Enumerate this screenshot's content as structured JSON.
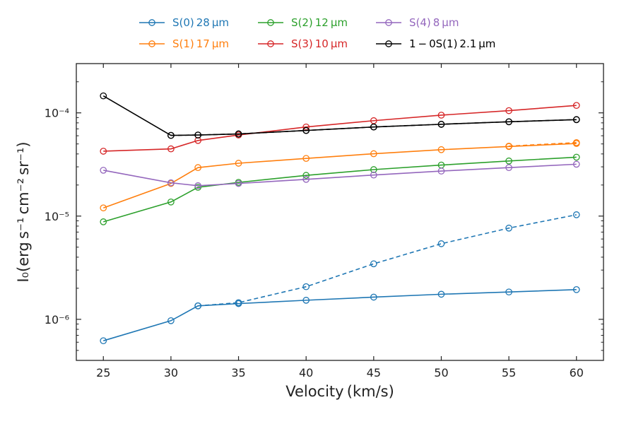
{
  "chart_data": {
    "type": "line",
    "title": "",
    "xlabel": "Velocity (km/s)",
    "ylabel": "I₀(erg s⁻¹ cm⁻² sr⁻¹)",
    "yscale": "log",
    "xlim": [
      23,
      62
    ],
    "ylim": [
      4e-07,
      0.0003
    ],
    "xticks": [
      25,
      30,
      35,
      40,
      45,
      50,
      55,
      60
    ],
    "xtick_labels": [
      "25",
      "30",
      "35",
      "40",
      "45",
      "50",
      "55",
      "60"
    ],
    "yticks": [
      1e-06,
      1e-05,
      0.0001
    ],
    "ytick_labels": [
      "10⁻⁶",
      "10⁻⁵",
      "10⁻⁴"
    ],
    "grid": false,
    "legend_position": "top-center",
    "x": [
      25,
      30,
      32,
      35,
      40,
      45,
      50,
      55,
      60
    ],
    "series": [
      {
        "name": "S(0) 28 μm",
        "color": "#1f77b4",
        "values": [
          6.2e-07,
          9.7e-07,
          1.35e-06,
          1.42e-06,
          1.53e-06,
          1.64e-06,
          1.75e-06,
          1.84e-06,
          1.94e-06
        ],
        "dashed_x": [
          32,
          35,
          40,
          45,
          50,
          55,
          60
        ],
        "dashed_values": [
          1.35e-06,
          1.45e-06,
          2.07e-06,
          3.45e-06,
          5.4e-06,
          7.65e-06,
          1.03e-05
        ]
      },
      {
        "name": "S(1) 17 μm",
        "color": "#ff7f0e",
        "values": [
          1.2e-05,
          2.07e-05,
          2.95e-05,
          3.25e-05,
          3.62e-05,
          4.02e-05,
          4.4e-05,
          4.72e-05,
          5.05e-05
        ],
        "dashed_x": [
          55,
          60
        ],
        "dashed_values": [
          4.76e-05,
          5.15e-05
        ]
      },
      {
        "name": "S(2) 12 μm",
        "color": "#2ca02c",
        "values": [
          8.8e-06,
          1.37e-05,
          1.9e-05,
          2.12e-05,
          2.48e-05,
          2.82e-05,
          3.12e-05,
          3.42e-05,
          3.72e-05
        ],
        "dashed_x": [],
        "dashed_values": []
      },
      {
        "name": "S(3) 10 μm",
        "color": "#d62728",
        "values": [
          4.25e-05,
          4.48e-05,
          5.4e-05,
          6.1e-05,
          7.3e-05,
          8.4e-05,
          9.5e-05,
          0.000105,
          0.000118
        ],
        "dashed_x": [],
        "dashed_values": []
      },
      {
        "name": "S(4) 8 μm",
        "color": "#9467bd",
        "values": [
          2.78e-05,
          2.1e-05,
          1.97e-05,
          2.07e-05,
          2.27e-05,
          2.5e-05,
          2.73e-05,
          2.95e-05,
          3.18e-05
        ],
        "dashed_x": [],
        "dashed_values": []
      },
      {
        "name": "1 − 0S(1) 2.1 μm",
        "color": "#000000",
        "values": [
          0.000146,
          6.05e-05,
          6.1e-05,
          6.25e-05,
          6.75e-05,
          7.3e-05,
          7.75e-05,
          8.2e-05,
          8.6e-05
        ],
        "dashed_x": [
          30,
          32,
          35,
          40,
          45,
          50,
          55,
          60
        ],
        "dashed_values": [
          6.05e-05,
          6.1e-05,
          6.25e-05,
          6.75e-05,
          7.3e-05,
          7.75e-05,
          8.2e-05,
          8.6e-05
        ]
      }
    ]
  }
}
